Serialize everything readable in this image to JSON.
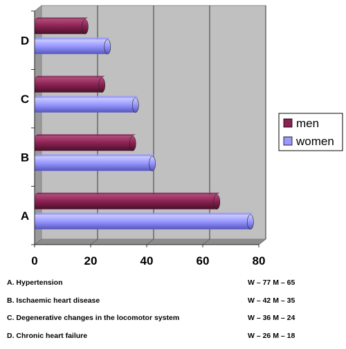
{
  "chart_data": {
    "type": "bar",
    "orientation": "horizontal",
    "categories": [
      "A",
      "B",
      "C",
      "D"
    ],
    "series": [
      {
        "name": "men",
        "values": [
          65,
          35,
          24,
          18
        ],
        "color": "#8b2252"
      },
      {
        "name": "women",
        "values": [
          77,
          42,
          36,
          26
        ],
        "color": "#9999ff"
      }
    ],
    "xlim": [
      0,
      80
    ],
    "xticks": [
      0,
      20,
      40,
      60,
      80
    ],
    "grid": true,
    "plot_background": "#c0c0c0",
    "legend": {
      "position": "right",
      "entries": [
        "men",
        "women"
      ]
    }
  },
  "notes": [
    {
      "description": "A. Hypertension",
      "women_label": "W –",
      "women": "77",
      "men_label": "M –",
      "men": "65"
    },
    {
      "description": "B. Ischaemic heart disease",
      "women_label": "W –",
      "women": "42",
      "men_label": "M –",
      "men": "35"
    },
    {
      "description": "C. Degenerative changes in the locomotor system",
      "women_label": "W –",
      "women": "36",
      "men_label": "M –",
      "men": "24"
    },
    {
      "description": "D. Chronic heart failure",
      "women_label": "W –",
      "women": "26",
      "men_label": "M –",
      "men": "18"
    }
  ]
}
